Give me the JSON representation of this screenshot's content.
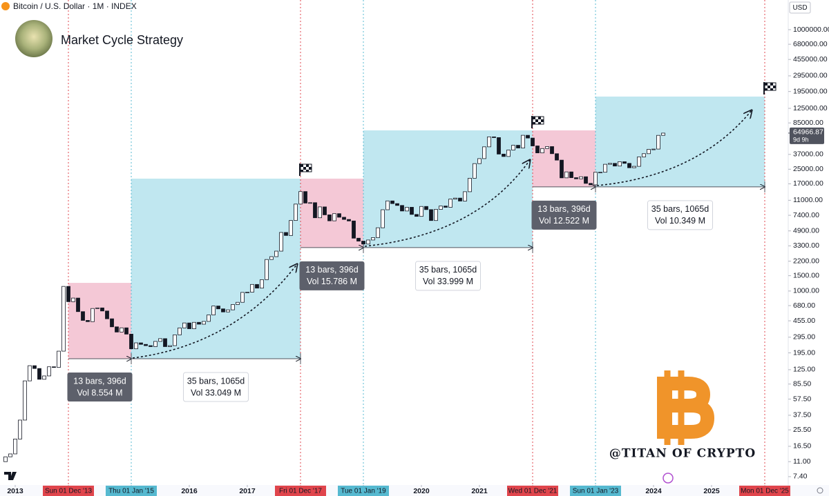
{
  "header": {
    "symbol": "Bitcoin / U.S. Dollar · 1M · INDEX",
    "title": "Market Cycle Strategy",
    "currency": "USD",
    "watermark": "@TITAN OF CRYPTO"
  },
  "chart_data": {
    "type": "candlestick",
    "log_scale": true,
    "x": [
      "2012-11",
      "2012-12",
      "2013-01",
      "2013-02",
      "2013-03",
      "2013-04",
      "2013-05",
      "2013-06",
      "2013-07",
      "2013-08",
      "2013-09",
      "2013-10",
      "2013-11",
      "2013-12",
      "2014-01",
      "2014-02",
      "2014-03",
      "2014-04",
      "2014-05",
      "2014-06",
      "2014-07",
      "2014-08",
      "2014-09",
      "2014-10",
      "2014-11",
      "2014-12",
      "2015-01",
      "2015-02",
      "2015-03",
      "2015-04",
      "2015-05",
      "2015-06",
      "2015-07",
      "2015-08",
      "2015-09",
      "2015-10",
      "2015-11",
      "2015-12",
      "2016-01",
      "2016-02",
      "2016-03",
      "2016-04",
      "2016-05",
      "2016-06",
      "2016-07",
      "2016-08",
      "2016-09",
      "2016-10",
      "2016-11",
      "2016-12",
      "2017-01",
      "2017-02",
      "2017-03",
      "2017-04",
      "2017-05",
      "2017-06",
      "2017-07",
      "2017-08",
      "2017-09",
      "2017-10",
      "2017-11",
      "2017-12",
      "2018-01",
      "2018-02",
      "2018-03",
      "2018-04",
      "2018-05",
      "2018-06",
      "2018-07",
      "2018-08",
      "2018-09",
      "2018-10",
      "2018-11",
      "2018-12",
      "2019-01",
      "2019-02",
      "2019-03",
      "2019-04",
      "2019-05",
      "2019-06",
      "2019-07",
      "2019-08",
      "2019-09",
      "2019-10",
      "2019-11",
      "2019-12",
      "2020-01",
      "2020-02",
      "2020-03",
      "2020-04",
      "2020-05",
      "2020-06",
      "2020-07",
      "2020-08",
      "2020-09",
      "2020-10",
      "2020-11",
      "2020-12",
      "2021-01",
      "2021-02",
      "2021-03",
      "2021-04",
      "2021-05",
      "2021-06",
      "2021-07",
      "2021-08",
      "2021-09",
      "2021-10",
      "2021-11",
      "2021-12",
      "2022-01",
      "2022-02",
      "2022-03",
      "2022-04",
      "2022-05",
      "2022-06",
      "2022-07",
      "2022-08",
      "2022-09",
      "2022-10",
      "2022-11",
      "2022-12",
      "2023-01",
      "2023-02",
      "2023-03",
      "2023-04",
      "2023-05",
      "2023-06",
      "2023-07",
      "2023-08",
      "2023-09",
      "2023-10",
      "2023-11",
      "2023-12",
      "2024-01",
      "2024-02",
      "2024-03"
    ],
    "open": [
      11,
      12.5,
      13.5,
      20,
      33,
      93,
      139,
      129,
      97,
      106,
      135,
      133,
      204,
      1130,
      754,
      830,
      580,
      460,
      445,
      630,
      640,
      590,
      480,
      388,
      338,
      378,
      320,
      217,
      254,
      244,
      236,
      230,
      264,
      284,
      230,
      236,
      314,
      377,
      430,
      369,
      437,
      416,
      448,
      531,
      673,
      624,
      575,
      608,
      700,
      742,
      964,
      970,
      1190,
      1080,
      1350,
      2300,
      2480,
      2870,
      4700,
      4340,
      6450,
      9950,
      13860,
      10220,
      10330,
      6930,
      9240,
      7490,
      6390,
      7730,
      7030,
      6630,
      6370,
      4040,
      3740,
      3460,
      3850,
      4100,
      5320,
      8570,
      10820,
      10080,
      9600,
      8290,
      9150,
      7570,
      7190,
      9350,
      8600,
      6440,
      8660,
      9450,
      9140,
      11350,
      11660,
      10780,
      13800,
      19700,
      29000,
      33100,
      45200,
      58800,
      57700,
      37300,
      35000,
      41500,
      47100,
      43800,
      61300,
      57000,
      46300,
      38500,
      43200,
      45500,
      37700,
      31800,
      19900,
      23300,
      20000,
      19400,
      20500,
      17200,
      16550,
      23100,
      23100,
      28500,
      29200,
      27200,
      30500,
      29200,
      26000,
      27000,
      34600,
      37700,
      42300,
      42600,
      61200
    ],
    "close": [
      12.5,
      13.5,
      20,
      33,
      93,
      139,
      129,
      97,
      106,
      135,
      133,
      204,
      1130,
      754,
      830,
      580,
      460,
      445,
      630,
      640,
      590,
      480,
      388,
      338,
      378,
      320,
      217,
      254,
      244,
      236,
      230,
      264,
      284,
      230,
      236,
      314,
      377,
      430,
      369,
      437,
      416,
      448,
      531,
      673,
      624,
      575,
      608,
      700,
      742,
      964,
      970,
      1190,
      1080,
      1350,
      2300,
      2480,
      2870,
      4700,
      4340,
      6450,
      9950,
      13860,
      10220,
      10330,
      6930,
      9240,
      7490,
      6390,
      7730,
      7030,
      6630,
      6370,
      4040,
      3740,
      3460,
      3850,
      4100,
      5320,
      8570,
      10820,
      10080,
      9600,
      8290,
      9150,
      7570,
      7190,
      9350,
      8600,
      6440,
      8660,
      9450,
      9140,
      11350,
      11660,
      10780,
      13800,
      19700,
      29000,
      33100,
      45200,
      58800,
      57700,
      37300,
      35000,
      41500,
      47100,
      43800,
      61300,
      57000,
      46300,
      38500,
      43200,
      45500,
      37700,
      31800,
      19900,
      23300,
      20000,
      19400,
      20500,
      17200,
      16550,
      23100,
      23100,
      28500,
      29200,
      27200,
      30500,
      29200,
      26000,
      27000,
      34600,
      37700,
      42300,
      42600,
      61200,
      64966.87
    ],
    "up_color": "#ffffff",
    "down_color": "#131722",
    "last_price": 64966.87,
    "countdown": "9d 9h",
    "ylim": [
      5.94,
      2190000
    ],
    "yticks": [
      {
        "value": 1000000,
        "label": "1000000.00"
      },
      {
        "value": 680000,
        "label": "680000.00"
      },
      {
        "value": 455000,
        "label": "455000.00"
      },
      {
        "value": 295000,
        "label": "295000.00"
      },
      {
        "value": 195000,
        "label": "195000.00"
      },
      {
        "value": 125000,
        "label": "125000.00"
      },
      {
        "value": 85000,
        "label": "85000.00"
      },
      {
        "value": 37000,
        "label": "37000.00"
      },
      {
        "value": 25000,
        "label": "25000.00"
      },
      {
        "value": 17000,
        "label": "17000.00"
      },
      {
        "value": 11000,
        "label": "11000.00"
      },
      {
        "value": 7400,
        "label": "7400.00"
      },
      {
        "value": 4900,
        "label": "4900.00"
      },
      {
        "value": 3300,
        "label": "3300.00"
      },
      {
        "value": 2200,
        "label": "2200.00"
      },
      {
        "value": 1500,
        "label": "1500.00"
      },
      {
        "value": 1000,
        "label": "1000.00"
      },
      {
        "value": 680,
        "label": "680.00"
      },
      {
        "value": 455,
        "label": "455.00"
      },
      {
        "value": 295,
        "label": "295.00"
      },
      {
        "value": 195,
        "label": "195.00"
      },
      {
        "value": 125,
        "label": "125.00"
      },
      {
        "value": 85.5,
        "label": "85.50"
      },
      {
        "value": 57.5,
        "label": "57.50"
      },
      {
        "value": 37.5,
        "label": "37.50"
      },
      {
        "value": 25.5,
        "label": "25.50"
      },
      {
        "value": 16.5,
        "label": "16.50"
      },
      {
        "value": 11,
        "label": "11.00"
      },
      {
        "value": 7.4,
        "label": "7.40"
      }
    ],
    "xlim": [
      "2012-10",
      "2026-05"
    ],
    "xticks": [
      {
        "value": "2013-01",
        "label": "2013"
      },
      {
        "value": "2013-12",
        "label": "Sun 01 Dec '13",
        "color": "#e0454c"
      },
      {
        "value": "2015-01",
        "label": "Thu 01 Jan '15",
        "color": "#56b9d0"
      },
      {
        "value": "2016-01",
        "label": "2016"
      },
      {
        "value": "2017-01",
        "label": "2017"
      },
      {
        "value": "2017-12",
        "label": "Fri 01 Dec '17",
        "color": "#e0454c"
      },
      {
        "value": "2019-01",
        "label": "Tue 01 Jan '19",
        "color": "#56b9d0"
      },
      {
        "value": "2020-01",
        "label": "2020"
      },
      {
        "value": "2021-01",
        "label": "2021"
      },
      {
        "value": "2021-12",
        "label": "Wed 01 Dec '21",
        "color": "#e0454c"
      },
      {
        "value": "2023-01",
        "label": "Sun 01 Jan '23",
        "color": "#56b9d0"
      },
      {
        "value": "2024-01",
        "label": "2024"
      },
      {
        "value": "2025-01",
        "label": "2025"
      },
      {
        "value": "2025-12",
        "label": "Mon 01 Dec '25",
        "color": "#e0454c"
      }
    ],
    "ranges": [
      {
        "start": "2013-12",
        "end": "2015-01",
        "top": 1240,
        "bottom": 167,
        "color": "#f3c5d4",
        "label_color": "#5d606b",
        "bars": "13 bars, 396d",
        "volume": "Vol 8.554 M"
      },
      {
        "start": "2015-01",
        "end": "2017-12",
        "top": 19500,
        "bottom": 167,
        "color": "#bde6ef",
        "label_color": "#ffffff",
        "bars": "35 bars, 1065d",
        "volume": "Vol 33.049 M"
      },
      {
        "start": "2017-12",
        "end": "2019-01",
        "top": 19500,
        "bottom": 3150,
        "color": "#f3c5d4",
        "label_color": "#5d606b",
        "bars": "13 bars, 396d",
        "volume": "Vol 15.786 M"
      },
      {
        "start": "2019-01",
        "end": "2021-12",
        "top": 69800,
        "bottom": 3150,
        "color": "#bde6ef",
        "label_color": "#ffffff",
        "bars": "35 bars, 1065d",
        "volume": "Vol 33.999 M"
      },
      {
        "start": "2021-12",
        "end": "2023-01",
        "top": 69800,
        "bottom": 15700,
        "color": "#f3c5d4",
        "label_color": "#5d606b",
        "bars": "13 bars, 396d",
        "volume": "Vol 12.522 M"
      },
      {
        "start": "2023-01",
        "end": "2025-12",
        "top": 170600,
        "bottom": 15700,
        "color": "#bde6ef",
        "label_color": "#ffffff",
        "bars": "35 bars, 1065d",
        "volume": "Vol 10.349 M"
      }
    ]
  }
}
